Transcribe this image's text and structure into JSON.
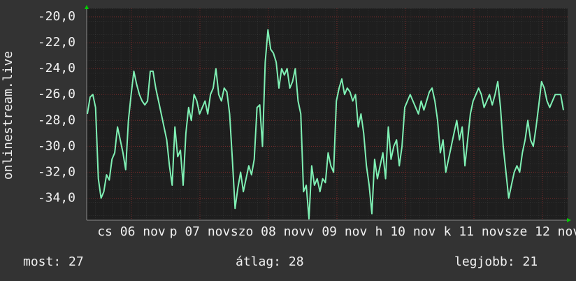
{
  "chart_data": {
    "type": "line",
    "y_label": "onlinestream.live",
    "ylim": [
      -35.7,
      -19.35
    ],
    "yticks": [
      {
        "value": -20,
        "label": "-20,0"
      },
      {
        "value": -22,
        "label": "-22,0"
      },
      {
        "value": -24,
        "label": "-24,0"
      },
      {
        "value": -26,
        "label": "-26,0"
      },
      {
        "value": -28,
        "label": "-28,0"
      },
      {
        "value": -30,
        "label": "-30,0"
      },
      {
        "value": -32,
        "label": "-32,0"
      },
      {
        "value": -34,
        "label": "-34,0"
      }
    ],
    "x_labels": [
      "cs 06 nov",
      "p 07 nov",
      "szo 08 nov",
      "v 09 nov",
      "h 10 nov",
      "k 11 nov",
      "sze 12 nov"
    ],
    "color": "#7ff0b4",
    "grid": true,
    "values": [
      -27.5,
      -26.2,
      -26,
      -27,
      -32.5,
      -34,
      -33.5,
      -32.2,
      -32.6,
      -31,
      -30.5,
      -28.5,
      -29.5,
      -30.5,
      -31.8,
      -28,
      -26,
      -24.2,
      -25.2,
      -26,
      -26.5,
      -26.8,
      -26.5,
      -24.2,
      -24.2,
      -25.5,
      -26.5,
      -27.5,
      -28.5,
      -29.5,
      -31.5,
      -33,
      -28.5,
      -30.8,
      -30.3,
      -33,
      -29,
      -27,
      -28,
      -26,
      -26.5,
      -27.5,
      -27,
      -26.5,
      -27.5,
      -26,
      -25.5,
      -24,
      -26,
      -26.5,
      -25.5,
      -25.8,
      -27.5,
      -31,
      -34.8,
      -33.2,
      -32,
      -33.5,
      -32.5,
      -31.5,
      -32.2,
      -31,
      -27,
      -26.8,
      -30,
      -23.5,
      -21,
      -22.5,
      -22.8,
      -23.5,
      -25.5,
      -24,
      -24.5,
      -24,
      -25.5,
      -25,
      -24,
      -26.5,
      -27.5,
      -33.5,
      -33,
      -35.6,
      -31.5,
      -33,
      -32.5,
      -33.5,
      -32.5,
      -32.8,
      -30.5,
      -31.5,
      -32,
      -26.5,
      -25.5,
      -24.8,
      -26,
      -25.5,
      -25.8,
      -26.5,
      -26,
      -28.5,
      -27.5,
      -29,
      -31.5,
      -33,
      -35.2,
      -31,
      -32.5,
      -31.5,
      -30.5,
      -32.5,
      -28.5,
      -31,
      -30,
      -29.5,
      -31.5,
      -30,
      -27,
      -26.5,
      -26,
      -26.5,
      -27,
      -27.5,
      -26.5,
      -27.2,
      -26.5,
      -25.8,
      -25.5,
      -26.5,
      -28,
      -30.5,
      -29.5,
      -32,
      -31,
      -30,
      -29,
      -28,
      -29.5,
      -28.5,
      -31.5,
      -29.5,
      -27.5,
      -26.5,
      -26,
      -25.5,
      -26,
      -27,
      -26.5,
      -26,
      -26.8,
      -26,
      -25,
      -27,
      -30,
      -32,
      -34,
      -33,
      -32,
      -31.5,
      -32,
      -30.5,
      -29.5,
      -28,
      -29.5,
      -30,
      -28.5,
      -26.8,
      -25,
      -25.5,
      -26.5,
      -27,
      -26.5,
      -26,
      -26,
      -26,
      -27.2
    ],
    "footer": [
      "most: 27",
      "átlag: 28",
      "legjobb: 21"
    ]
  }
}
